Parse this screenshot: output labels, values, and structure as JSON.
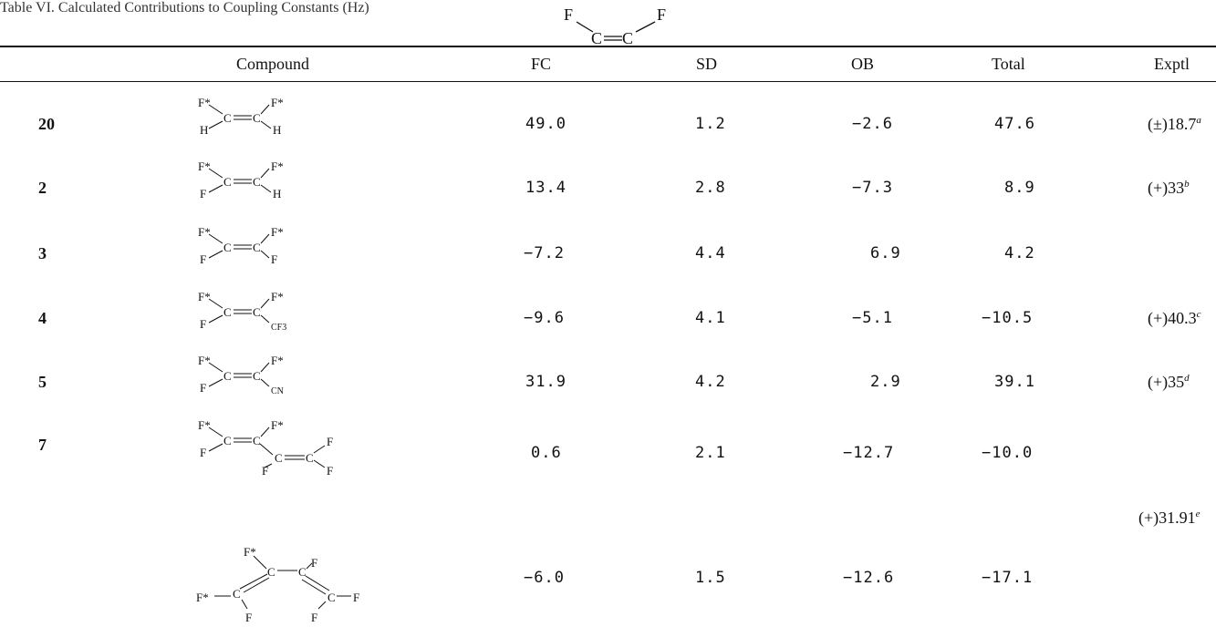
{
  "caption": "Table VI.  Calculated Contributions to Coupling Constants (Hz)",
  "header_structure": {
    "atoms": [
      "F",
      "F",
      "C",
      "C"
    ]
  },
  "columns": {
    "compound": "Compound",
    "fc": "FC",
    "sd": "SD",
    "ob": "OB",
    "total": "Total",
    "exptl": "Exptl"
  },
  "rows": [
    {
      "id": "20",
      "fc": "49.0",
      "sd": "1.2",
      "ob": "−2.6",
      "total": "47.6",
      "exptl": "(±)18.7",
      "exptl_note": "a"
    },
    {
      "id": "2",
      "fc": "13.4",
      "sd": "2.8",
      "ob": "−7.3",
      "total": "8.9",
      "exptl": "(+)33",
      "exptl_note": "b"
    },
    {
      "id": "3",
      "fc": "−7.2",
      "sd": "4.4",
      "ob": "6.9",
      "total": "4.2",
      "exptl": "",
      "exptl_note": ""
    },
    {
      "id": "4",
      "fc": "−9.6",
      "sd": "4.1",
      "ob": "−5.1",
      "total": "−10.5",
      "exptl": "(+)40.3",
      "exptl_note": "c"
    },
    {
      "id": "5",
      "fc": "31.9",
      "sd": "4.2",
      "ob": "2.9",
      "total": "39.1",
      "exptl": "(+)35",
      "exptl_note": "d"
    },
    {
      "id": "7",
      "fc": "0.6",
      "sd": "2.1",
      "ob": "−12.7",
      "total": "−10.0",
      "exptl": "",
      "exptl_note": ""
    },
    {
      "id": "",
      "fc": "−6.0",
      "sd": "1.5",
      "ob": "−12.6",
      "total": "−17.1",
      "exptl": "",
      "exptl_note": ""
    }
  ],
  "shared_exptl": {
    "value": "(+)31.91",
    "note": "e"
  },
  "structures": {
    "s20": {
      "tl": "F*",
      "tr": "F*",
      "bl": "H",
      "br": "H"
    },
    "s2": {
      "tl": "F*",
      "tr": "F*",
      "bl": "F",
      "br": "H"
    },
    "s3": {
      "tl": "F*",
      "tr": "F*",
      "bl": "F",
      "br": "F"
    },
    "s4": {
      "tl": "F*",
      "tr": "F*",
      "bl": "F",
      "br": "CF3"
    },
    "s5": {
      "tl": "F*",
      "tr": "F*",
      "bl": "F",
      "br": "CN"
    },
    "s7a": {
      "tl": "F*",
      "tr": "F*",
      "bl": "F",
      "f1": "F",
      "f2": "F",
      "f3": "F"
    },
    "s7b": {
      "f_top": "F*",
      "f_left": "F*",
      "f_tr": "F",
      "f_bl": "F",
      "f_bm": "F",
      "f_right": "F"
    },
    "carbon": "C"
  }
}
